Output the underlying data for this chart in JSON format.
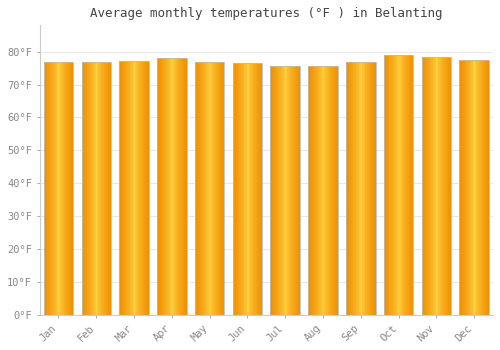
{
  "title": "Average monthly temperatures (°F ) in Belanting",
  "months": [
    "Jan",
    "Feb",
    "Mar",
    "Apr",
    "May",
    "Jun",
    "Jul",
    "Aug",
    "Sep",
    "Oct",
    "Nov",
    "Dec"
  ],
  "values": [
    77.0,
    77.0,
    77.2,
    78.0,
    77.0,
    76.5,
    75.5,
    75.7,
    77.0,
    79.0,
    78.5,
    77.5
  ],
  "bar_color_center": "#FFD000",
  "bar_color_edge": "#F0A000",
  "bar_border_color": "#BBBBBB",
  "background_color": "#FFFFFF",
  "grid_color": "#E8E8E8",
  "ylim": [
    0,
    88
  ],
  "yticks": [
    0,
    10,
    20,
    30,
    40,
    50,
    60,
    70,
    80
  ],
  "title_fontsize": 9,
  "tick_fontsize": 7.5,
  "text_color": "#888888"
}
